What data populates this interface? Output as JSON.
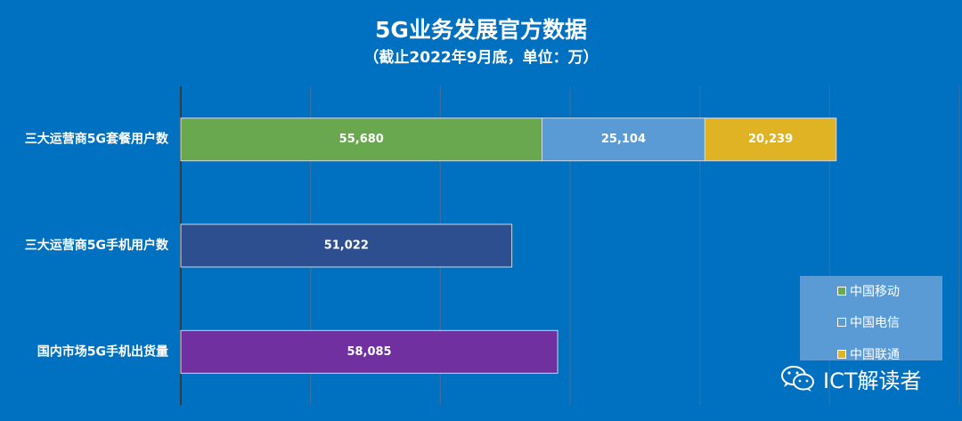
{
  "chart_data": {
    "type": "bar",
    "orientation": "horizontal",
    "stacked": true,
    "title": "5G业务发展官方数据",
    "subtitle": "（截止2022年9月底，单位：万）",
    "categories": [
      "三大运营商5G套餐用户数",
      "三大运营商5G手机用户数",
      "国内市场5G手机出货量"
    ],
    "series": [
      {
        "name": "中国移动",
        "color": "#6aa84f",
        "values": [
          55680,
          null,
          null
        ],
        "labels": [
          "55,680",
          null,
          null
        ]
      },
      {
        "name": "中国电信",
        "color": "#5b9bd5",
        "values": [
          25104,
          null,
          null
        ],
        "labels": [
          "25,104",
          null,
          null
        ]
      },
      {
        "name": "中国联通",
        "color": "#e0b325",
        "values": [
          20239,
          null,
          null
        ],
        "labels": [
          "20,239",
          null,
          null
        ]
      },
      {
        "name": "",
        "color": "#2e4f8f",
        "values": [
          null,
          51022,
          null
        ],
        "labels": [
          null,
          "51,022",
          null
        ]
      },
      {
        "name": "",
        "color": "#7030a0",
        "values": [
          null,
          null,
          58085
        ],
        "labels": [
          null,
          null,
          "58,085"
        ]
      }
    ],
    "xlim": [
      0,
      120000
    ],
    "grid": true,
    "legend_position": "bottom-right"
  },
  "watermark": {
    "text": "ICT解读者",
    "icon": "wechat-icon"
  }
}
